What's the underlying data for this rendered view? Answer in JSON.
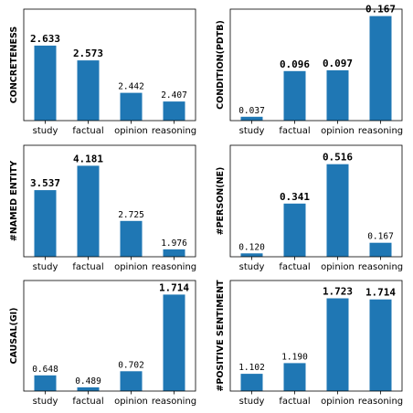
{
  "colors": {
    "bar": "#1f77b4"
  },
  "chart_data": [
    {
      "type": "bar",
      "ylabel": "CONCRETENESS",
      "categories": [
        "study",
        "factual",
        "opinion",
        "reasoning"
      ],
      "values": [
        2.633,
        2.573,
        2.442,
        2.407
      ],
      "labels": [
        "2.633",
        "2.573",
        "2.442",
        "2.407"
      ],
      "bold": [
        true,
        true,
        false,
        false
      ],
      "ylim": [
        2.33,
        2.78
      ]
    },
    {
      "type": "bar",
      "ylabel": "CONDITION(PDTB)",
      "categories": [
        "study",
        "factual",
        "opinion",
        "reasoning"
      ],
      "values": [
        0.037,
        0.096,
        0.097,
        0.167
      ],
      "labels": [
        "0.037",
        "0.096",
        "0.097",
        "0.167"
      ],
      "bold": [
        false,
        true,
        true,
        true
      ],
      "ylim": [
        0.032,
        0.176
      ]
    },
    {
      "type": "bar",
      "ylabel": "#NAMED ENTITY",
      "categories": [
        "study",
        "factual",
        "opinion",
        "reasoning"
      ],
      "values": [
        3.537,
        4.181,
        2.725,
        1.976
      ],
      "labels": [
        "3.537",
        "4.181",
        "2.725",
        "1.976"
      ],
      "bold": [
        true,
        true,
        false,
        false
      ],
      "ylim": [
        1.78,
        4.72
      ]
    },
    {
      "type": "bar",
      "ylabel": "#PERSON(NE)",
      "categories": [
        "study",
        "factual",
        "opinion",
        "reasoning"
      ],
      "values": [
        0.12,
        0.341,
        0.516,
        0.167
      ],
      "labels": [
        "0.120",
        "0.341",
        "0.516",
        "0.167"
      ],
      "bold": [
        false,
        true,
        true,
        false
      ],
      "ylim": [
        0.105,
        0.6
      ]
    },
    {
      "type": "bar",
      "ylabel": "CAUSAL(GI)",
      "categories": [
        "study",
        "factual",
        "opinion",
        "reasoning"
      ],
      "values": [
        0.648,
        0.489,
        0.702,
        1.714
      ],
      "labels": [
        "0.648",
        "0.489",
        "0.702",
        "1.714"
      ],
      "bold": [
        false,
        false,
        false,
        true
      ],
      "ylim": [
        0.44,
        1.9
      ]
    },
    {
      "type": "bar",
      "ylabel": "#POSITIVE SENTIMENT",
      "categories": [
        "study",
        "factual",
        "opinion",
        "reasoning"
      ],
      "values": [
        1.102,
        1.19,
        1.723,
        1.714
      ],
      "labels": [
        "1.102",
        "1.190",
        "1.723",
        "1.714"
      ],
      "bold": [
        false,
        false,
        true,
        true
      ],
      "ylim": [
        0.96,
        1.87
      ]
    }
  ]
}
